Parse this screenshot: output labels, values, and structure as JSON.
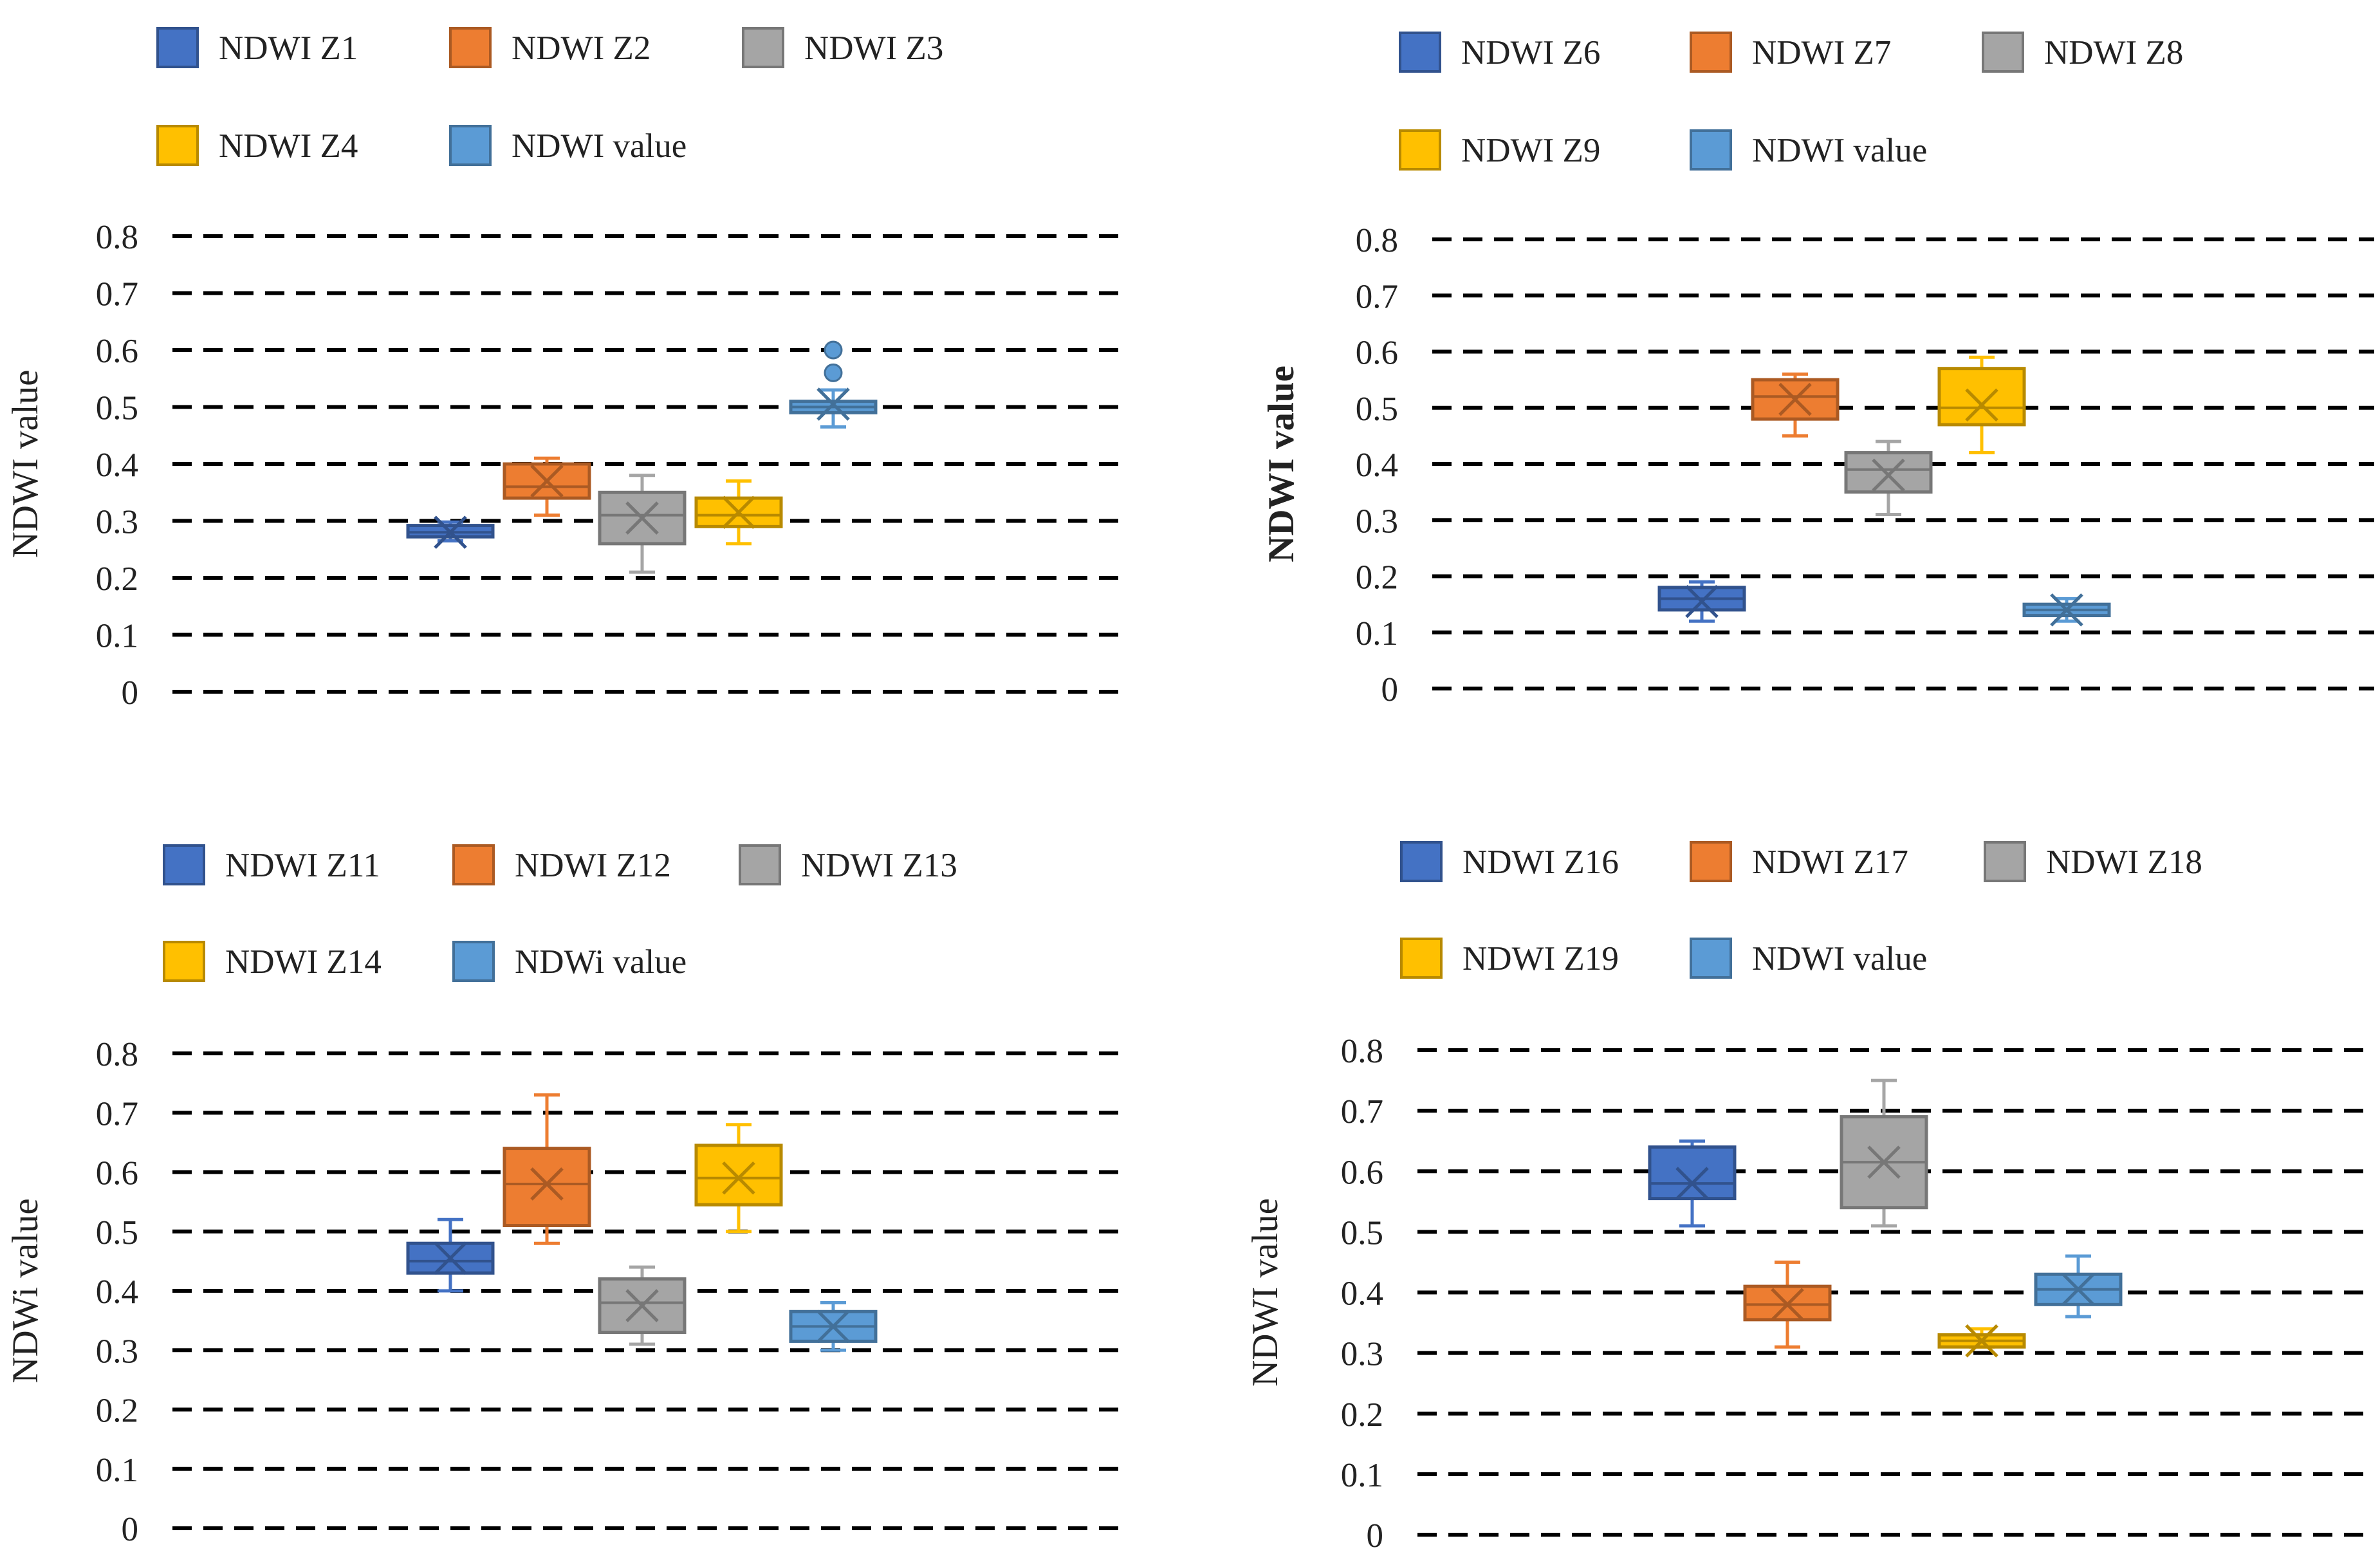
{
  "colors": {
    "zone1": "#4472C4",
    "zone2": "#ED7D31",
    "zone3": "#A5A5A5",
    "zone4": "#FFC000",
    "zone5": "#5B9BD5",
    "grid": "#000000"
  },
  "chart_data": [
    {
      "type": "box",
      "ylabel": "NDWI value",
      "ylim": [
        0,
        0.8
      ],
      "yticks": [
        "0",
        "0.1",
        "0.2",
        "0.3",
        "0.4",
        "0.5",
        "0.6",
        "0.7",
        "0.8"
      ],
      "legend": [
        "NDWI Z1",
        "NDWI Z2",
        "NDWI Z3",
        "NDWI Z4",
        "NDWI value"
      ],
      "series": [
        {
          "name": "NDWI Z1",
          "min": 0.265,
          "q1": 0.272,
          "median": 0.28,
          "q3": 0.292,
          "max": 0.298,
          "mean": 0.28,
          "outliers": []
        },
        {
          "name": "NDWI Z2",
          "min": 0.31,
          "q1": 0.34,
          "median": 0.36,
          "q3": 0.4,
          "max": 0.41,
          "mean": 0.37,
          "outliers": []
        },
        {
          "name": "NDWI Z3",
          "min": 0.21,
          "q1": 0.26,
          "median": 0.31,
          "q3": 0.35,
          "max": 0.38,
          "mean": 0.305,
          "outliers": []
        },
        {
          "name": "NDWI Z4",
          "min": 0.26,
          "q1": 0.29,
          "median": 0.31,
          "q3": 0.34,
          "max": 0.37,
          "mean": 0.315,
          "outliers": []
        },
        {
          "name": "NDWI value",
          "min": 0.465,
          "q1": 0.49,
          "median": 0.5,
          "q3": 0.51,
          "max": 0.53,
          "mean": 0.505,
          "outliers": [
            0.56,
            0.6
          ]
        }
      ]
    },
    {
      "type": "box",
      "ylabel": "NDWI value",
      "ylim": [
        0,
        0.8
      ],
      "yticks": [
        "0",
        "0.1",
        "0.2",
        "0.3",
        "0.4",
        "0.5",
        "0.6",
        "0.7",
        "0.8"
      ],
      "legend": [
        "NDWI Z6",
        "NDWI Z7",
        "NDWI Z8",
        "NDWI Z9",
        "NDWI value"
      ],
      "series": [
        {
          "name": "NDWI Z6",
          "min": 0.12,
          "q1": 0.14,
          "median": 0.16,
          "q3": 0.18,
          "max": 0.19,
          "mean": 0.155,
          "outliers": []
        },
        {
          "name": "NDWI Z7",
          "min": 0.45,
          "q1": 0.48,
          "median": 0.52,
          "q3": 0.55,
          "max": 0.56,
          "mean": 0.515,
          "outliers": []
        },
        {
          "name": "NDWI Z8",
          "min": 0.31,
          "q1": 0.35,
          "median": 0.39,
          "q3": 0.42,
          "max": 0.44,
          "mean": 0.38,
          "outliers": []
        },
        {
          "name": "NDWI Z9",
          "min": 0.42,
          "q1": 0.47,
          "median": 0.5,
          "q3": 0.57,
          "max": 0.59,
          "mean": 0.505,
          "outliers": []
        },
        {
          "name": "NDWI value",
          "min": 0.12,
          "q1": 0.13,
          "median": 0.14,
          "q3": 0.15,
          "max": 0.16,
          "mean": 0.14,
          "outliers": []
        }
      ]
    },
    {
      "type": "box",
      "ylabel": "NDWi value",
      "ylim": [
        0,
        0.8
      ],
      "yticks": [
        "0",
        "0.1",
        "0.2",
        "0.3",
        "0.4",
        "0.5",
        "0.6",
        "0.7",
        "0.8"
      ],
      "legend": [
        "NDWI Z11",
        "NDWI Z12",
        "NDWI Z13",
        "NDWI Z14",
        "NDWi value"
      ],
      "series": [
        {
          "name": "NDWI Z11",
          "min": 0.4,
          "q1": 0.43,
          "median": 0.45,
          "q3": 0.48,
          "max": 0.52,
          "mean": 0.455,
          "outliers": []
        },
        {
          "name": "NDWI Z12",
          "min": 0.48,
          "q1": 0.51,
          "median": 0.58,
          "q3": 0.64,
          "max": 0.73,
          "mean": 0.58,
          "outliers": []
        },
        {
          "name": "NDWI Z13",
          "min": 0.31,
          "q1": 0.33,
          "median": 0.38,
          "q3": 0.42,
          "max": 0.44,
          "mean": 0.375,
          "outliers": []
        },
        {
          "name": "NDWI Z14",
          "min": 0.5,
          "q1": 0.545,
          "median": 0.59,
          "q3": 0.645,
          "max": 0.68,
          "mean": 0.59,
          "outliers": []
        },
        {
          "name": "NDWi value",
          "min": 0.3,
          "q1": 0.315,
          "median": 0.34,
          "q3": 0.365,
          "max": 0.38,
          "mean": 0.34,
          "outliers": []
        }
      ]
    },
    {
      "type": "box",
      "ylabel": "NDWI value",
      "ylim": [
        0,
        0.8
      ],
      "yticks": [
        "0",
        "0.1",
        "0.2",
        "0.3",
        "0.4",
        "0.5",
        "0.6",
        "0.7",
        "0.8"
      ],
      "legend": [
        "NDWI Z16",
        "NDWI Z17",
        "NDWI Z18",
        "NDWI Z19",
        "NDWI value"
      ],
      "series": [
        {
          "name": "NDWI Z16",
          "min": 0.51,
          "q1": 0.555,
          "median": 0.58,
          "q3": 0.64,
          "max": 0.65,
          "mean": 0.58,
          "outliers": []
        },
        {
          "name": "NDWI Z17",
          "min": 0.31,
          "q1": 0.355,
          "median": 0.38,
          "q3": 0.41,
          "max": 0.45,
          "mean": 0.38,
          "outliers": []
        },
        {
          "name": "NDWI Z18",
          "min": 0.51,
          "q1": 0.54,
          "median": 0.615,
          "q3": 0.69,
          "max": 0.75,
          "mean": 0.615,
          "outliers": []
        },
        {
          "name": "NDWI Z19",
          "min": 0.31,
          "q1": 0.31,
          "median": 0.32,
          "q3": 0.33,
          "max": 0.34,
          "mean": 0.32,
          "outliers": []
        },
        {
          "name": "NDWI value",
          "min": 0.36,
          "q1": 0.38,
          "median": 0.405,
          "q3": 0.43,
          "max": 0.46,
          "mean": 0.405,
          "outliers": []
        }
      ]
    }
  ]
}
